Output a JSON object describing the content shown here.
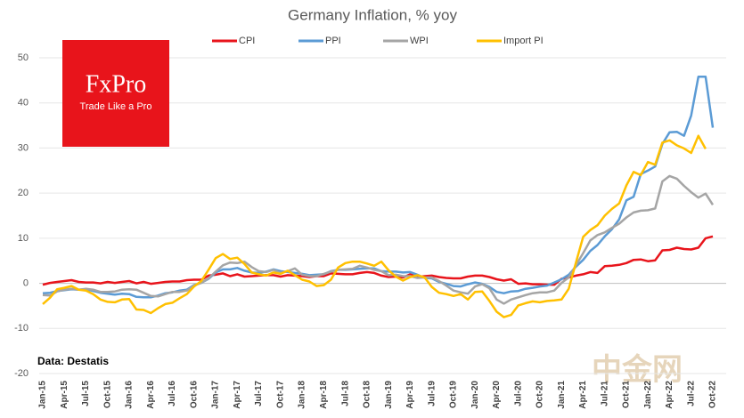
{
  "chart_data": {
    "type": "line",
    "title": "Germany Inflation, % yoy",
    "annotation": "Data: Destatis",
    "logo": {
      "name": "FxPro",
      "tagline": "Trade Like a Pro"
    },
    "watermark": "中金网",
    "categories": [
      "Jan-15",
      null,
      null,
      "Apr-15",
      null,
      null,
      "Jul-15",
      null,
      null,
      "Oct-15",
      null,
      null,
      "Jan-16",
      null,
      null,
      "Apr-16",
      null,
      null,
      "Jul-16",
      null,
      null,
      "Oct-16",
      null,
      null,
      "Jan-17",
      null,
      null,
      "Apr-17",
      null,
      null,
      "Jul-17",
      null,
      null,
      "Oct-17",
      null,
      null,
      "Jan-18",
      null,
      null,
      "Apr-18",
      null,
      null,
      "Jul-18",
      null,
      null,
      "Oct-18",
      null,
      null,
      "Jan-19",
      null,
      null,
      "Apr-19",
      null,
      null,
      "Jul-19",
      null,
      null,
      "Oct-19",
      null,
      null,
      "Jan-20",
      null,
      null,
      "Apr-20",
      null,
      null,
      "Jul-20",
      null,
      null,
      "Oct-20",
      null,
      null,
      "Jan-21",
      null,
      null,
      "Apr-21",
      null,
      null,
      "Jul-21",
      null,
      null,
      "Oct-21",
      null,
      null,
      "Jan-22",
      null,
      null,
      "Apr-22",
      null,
      null,
      "Jul-22",
      null,
      null,
      "Oct-22"
    ],
    "series": [
      {
        "name": "CPI",
        "color": "#e8141b",
        "values": [
          -0.3,
          0.1,
          0.3,
          0.5,
          0.7,
          0.3,
          0.2,
          0.2,
          0,
          0.3,
          0.1,
          0.3,
          0.5,
          0,
          0.3,
          -0.1,
          0.1,
          0.3,
          0.4,
          0.4,
          0.7,
          0.8,
          0.8,
          1.7,
          1.9,
          2.2,
          1.6,
          2.0,
          1.5,
          1.6,
          1.7,
          1.8,
          1.8,
          1.5,
          1.8,
          1.7,
          1.6,
          1.4,
          1.6,
          1.6,
          2.2,
          2.1,
          2.0,
          2.0,
          2.3,
          2.5,
          2.3,
          1.7,
          1.4,
          1.5,
          1.3,
          2.0,
          1.4,
          1.6,
          1.7,
          1.4,
          1.2,
          1.1,
          1.1,
          1.5,
          1.7,
          1.7,
          1.4,
          0.9,
          0.6,
          0.9,
          -0.1,
          0.0,
          -0.2,
          -0.2,
          -0.3,
          -0.3,
          1.0,
          1.3,
          1.7,
          2.0,
          2.5,
          2.3,
          3.8,
          3.9,
          4.1,
          4.5,
          5.2,
          5.3,
          4.9,
          5.1,
          7.3,
          7.4,
          7.9,
          7.6,
          7.5,
          7.9,
          10.0,
          10.4
        ]
      },
      {
        "name": "PPI",
        "color": "#5b9bd5",
        "values": [
          -2.2,
          -2.1,
          -1.7,
          -1.5,
          -1.3,
          -1.4,
          -1.3,
          -1.7,
          -2.1,
          -2.3,
          -2.5,
          -2.3,
          -2.4,
          -3.0,
          -3.1,
          -3.1,
          -2.7,
          -2.2,
          -2.0,
          -1.6,
          -1.4,
          -0.4,
          0.1,
          1.0,
          2.4,
          3.1,
          3.1,
          3.4,
          2.8,
          2.4,
          2.3,
          2.6,
          3.1,
          2.7,
          2.5,
          2.3,
          2.1,
          1.8,
          1.9,
          2.0,
          2.7,
          3.0,
          3.0,
          3.1,
          3.2,
          3.3,
          3.3,
          2.7,
          2.6,
          2.6,
          2.4,
          2.5,
          1.9,
          1.2,
          1.1,
          0.3,
          -0.1,
          -0.6,
          -0.7,
          -0.2,
          0.2,
          -0.1,
          -0.8,
          -1.9,
          -2.2,
          -1.8,
          -1.7,
          -1.2,
          -1.0,
          -0.7,
          -0.5,
          0.2,
          0.9,
          1.9,
          3.7,
          5.2,
          7.2,
          8.5,
          10.4,
          12.0,
          14.2,
          18.4,
          19.2,
          24.2,
          25.0,
          25.9,
          30.9,
          33.5,
          33.6,
          32.7,
          37.2,
          45.8,
          45.8,
          34.5
        ]
      },
      {
        "name": "WPI",
        "color": "#a5a5a5",
        "values": [
          -2.6,
          -2.7,
          -1.8,
          -1.4,
          -1.2,
          -1.4,
          -1.2,
          -1.4,
          -1.9,
          -1.9,
          -1.8,
          -1.4,
          -1.3,
          -1.4,
          -2.1,
          -2.8,
          -2.9,
          -2.4,
          -1.9,
          -1.9,
          -1.6,
          -0.5,
          0.1,
          1.1,
          2.6,
          4.0,
          4.6,
          4.5,
          4.8,
          3.6,
          2.7,
          2.5,
          3.0,
          2.3,
          2.7,
          3.3,
          1.9,
          1.6,
          1.6,
          2.1,
          2.6,
          3.0,
          3.1,
          3.2,
          3.9,
          3.5,
          3.0,
          2.7,
          1.8,
          1.9,
          1.6,
          1.6,
          1.2,
          1.3,
          1.3,
          0.5,
          -0.5,
          -1.6,
          -2.0,
          -2.3,
          -0.7,
          -0.2,
          -1.1,
          -3.6,
          -4.5,
          -3.6,
          -3.1,
          -2.6,
          -2.2,
          -2.0,
          -2.0,
          -1.6,
          0.1,
          1.3,
          4.0,
          6.7,
          9.5,
          10.7,
          11.3,
          12.3,
          13.2,
          14.6,
          15.7,
          16.1,
          16.2,
          16.6,
          22.6,
          23.8,
          23.2,
          21.6,
          20.2,
          19.0,
          19.9,
          17.4
        ]
      },
      {
        "name": "Import PI",
        "color": "#ffc000",
        "values": [
          -4.6,
          -3.2,
          -1.3,
          -1.0,
          -0.6,
          -1.4,
          -1.6,
          -2.4,
          -3.6,
          -4.1,
          -4.2,
          -3.6,
          -3.5,
          -5.8,
          -5.9,
          -6.6,
          -5.5,
          -4.6,
          -4.3,
          -3.3,
          -2.4,
          -0.7,
          0.5,
          3.0,
          5.6,
          6.5,
          5.4,
          5.7,
          4.3,
          2.4,
          2.0,
          1.7,
          2.4,
          2.1,
          2.8,
          1.8,
          0.8,
          0.4,
          -0.6,
          -0.4,
          0.8,
          3.5,
          4.5,
          4.8,
          4.8,
          4.4,
          3.9,
          4.8,
          2.9,
          1.5,
          0.6,
          1.4,
          1.8,
          1.3,
          -0.8,
          -2.1,
          -2.4,
          -2.8,
          -2.4,
          -3.6,
          -1.9,
          -1.8,
          -3.9,
          -6.3,
          -7.5,
          -7.0,
          -4.9,
          -4.4,
          -4.0,
          -4.2,
          -3.9,
          -3.8,
          -3.6,
          -1.2,
          4.6,
          10.3,
          11.8,
          12.9,
          15.0,
          16.5,
          17.7,
          21.7,
          24.7,
          24.0,
          26.9,
          26.3,
          31.2,
          31.7,
          30.6,
          29.9,
          28.9,
          32.7,
          29.8,
          null
        ]
      }
    ],
    "ylim": [
      -20,
      50
    ],
    "yticks": [
      -20,
      -10,
      0,
      10,
      20,
      30,
      40,
      50
    ],
    "grid": true,
    "legend": "top"
  }
}
